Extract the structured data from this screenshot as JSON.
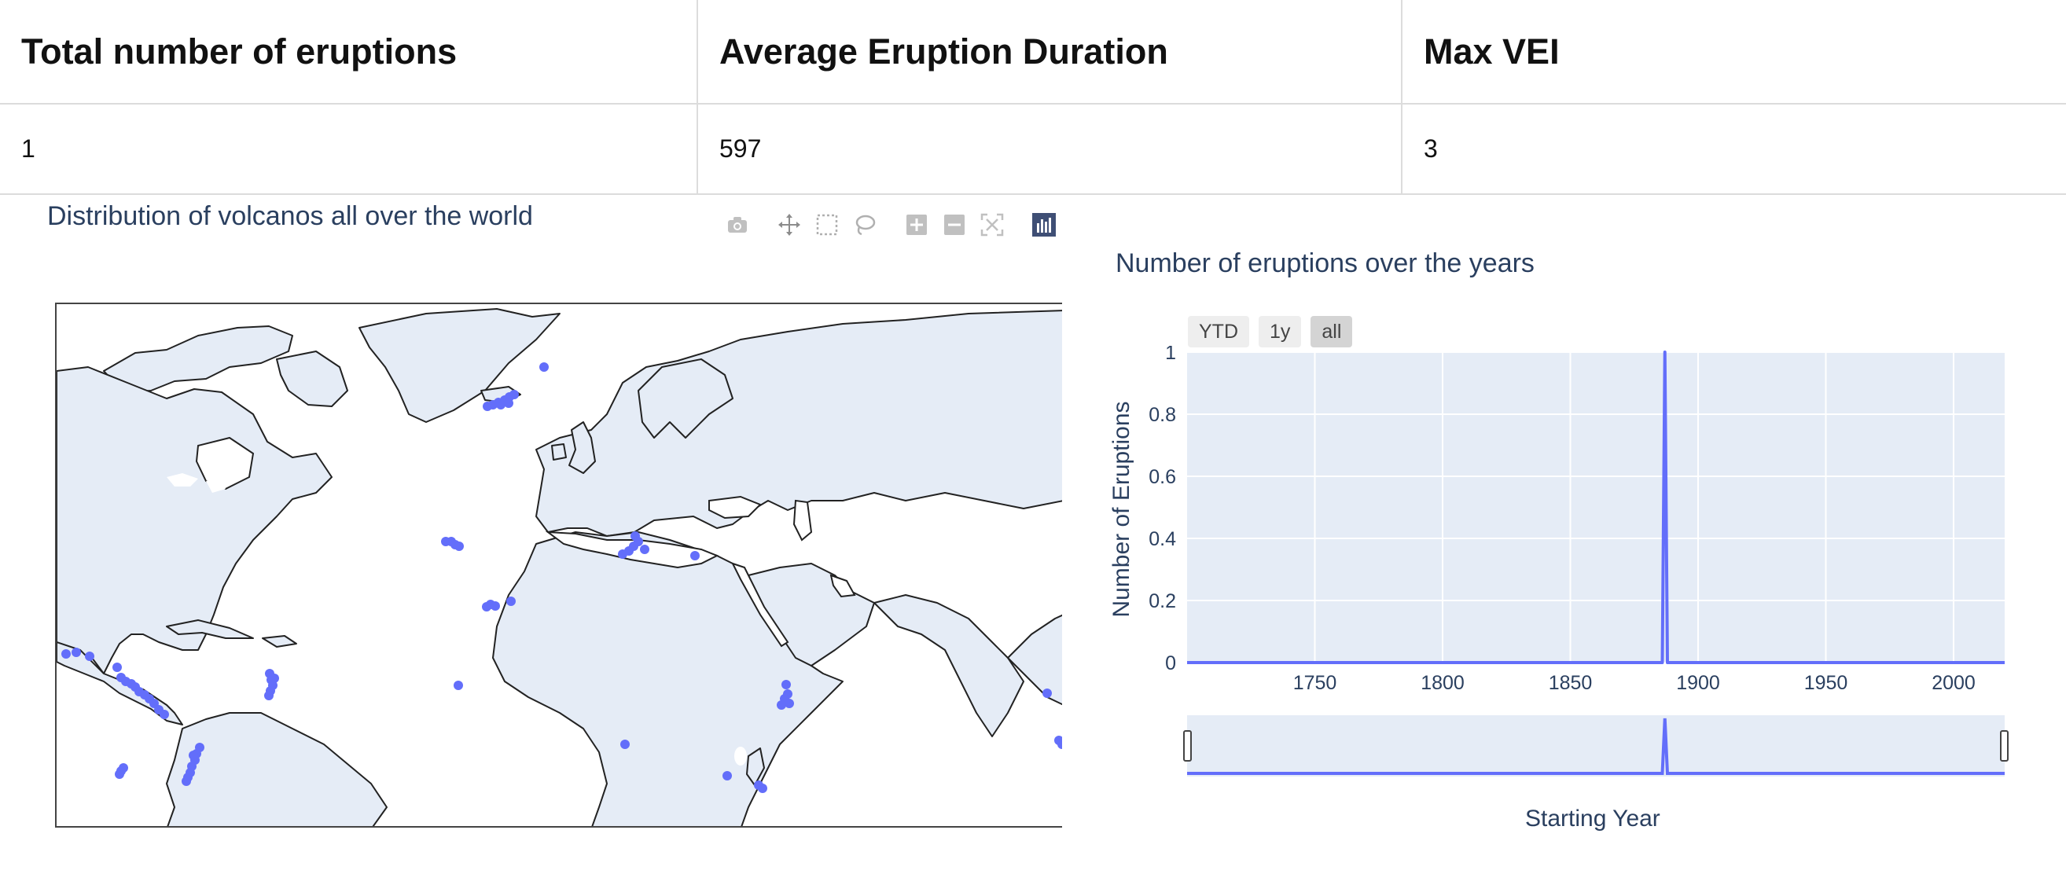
{
  "kpi": {
    "headers": [
      "Total number of eruptions",
      "Average Eruption Duration",
      "Max VEI"
    ],
    "values": [
      "1",
      "597",
      "3"
    ]
  },
  "map": {
    "title": "Distribution of volcanos all over the world",
    "land_color": "#e5ecf6",
    "marker_color": "#636efa",
    "modebar_icons": [
      "camera-icon",
      "pan-icon",
      "box-select-icon",
      "lasso-icon",
      "zoom-in-icon",
      "zoom-out-icon",
      "reset-icon",
      "plotly-logo-icon"
    ]
  },
  "timeseries": {
    "title": "Number of eruptions over the years",
    "range_buttons": [
      "YTD",
      "1y",
      "all"
    ],
    "active_button": "all"
  },
  "chart_data": {
    "type": "line",
    "title": "Number of eruptions over the years",
    "xlabel": "Starting Year",
    "ylabel": "Number of Eruptions",
    "x_ticks": [
      "1750",
      "1800",
      "1850",
      "1900",
      "1950",
      "2000"
    ],
    "y_ticks": [
      "0",
      "0.2",
      "0.4",
      "0.6",
      "0.8",
      "1"
    ],
    "xlim": [
      1700,
      2020
    ],
    "ylim": [
      0,
      1
    ],
    "grid": true,
    "rangeslider": true,
    "series": [
      {
        "x": [
          1700,
          1886,
          1887,
          1888,
          2020
        ],
        "y": [
          0,
          0,
          1,
          0,
          0
        ],
        "color": "#636efa"
      }
    ]
  }
}
